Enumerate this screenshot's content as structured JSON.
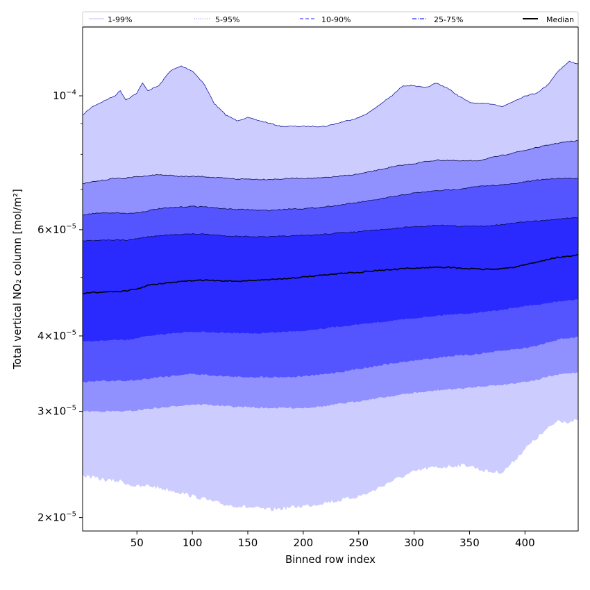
{
  "chart_data": {
    "type": "area",
    "xlabel": "Binned row index",
    "ylabel": "Total vertical NO₂ column [mol/m²]",
    "yscale": "log",
    "xlim": [
      1,
      448
    ],
    "ylim": [
      1.9e-05,
      0.00013
    ],
    "grid": false,
    "legend_position": "top",
    "x_ticks": [
      {
        "value": 50,
        "label": "50"
      },
      {
        "value": 100,
        "label": "100"
      },
      {
        "value": 150,
        "label": "150"
      },
      {
        "value": 200,
        "label": "200"
      },
      {
        "value": 250,
        "label": "250"
      },
      {
        "value": 300,
        "label": "300"
      },
      {
        "value": 350,
        "label": "350"
      },
      {
        "value": 400,
        "label": "400"
      }
    ],
    "y_ticks": [
      {
        "value": 2e-05,
        "base": "2",
        "exp": "−5"
      },
      {
        "value": 3e-05,
        "base": "3",
        "exp": "−5"
      },
      {
        "value": 4e-05,
        "base": "4",
        "exp": "−5"
      },
      {
        "value": 6e-05,
        "base": "6",
        "exp": "−5"
      },
      {
        "value": 0.0001,
        "base": "10",
        "exp": "−4"
      }
    ],
    "y_minor_ticks": [
      5e-05,
      7e-05,
      8e-05,
      9e-05
    ],
    "x": [
      1,
      10,
      20,
      30,
      35,
      40,
      50,
      55,
      60,
      70,
      80,
      90,
      100,
      110,
      120,
      130,
      140,
      150,
      160,
      170,
      180,
      190,
      200,
      210,
      220,
      230,
      240,
      250,
      260,
      270,
      280,
      290,
      300,
      310,
      320,
      330,
      340,
      350,
      360,
      370,
      380,
      390,
      400,
      410,
      420,
      430,
      440,
      448
    ],
    "bands": [
      {
        "name": "1-99%",
        "color": "#ccccff",
        "lower": [
          2.35e-05,
          2.33e-05,
          2.31e-05,
          2.3e-05,
          2.3e-05,
          2.28e-05,
          2.25e-05,
          2.25e-05,
          2.26e-05,
          2.24e-05,
          2.22e-05,
          2.2e-05,
          2.17e-05,
          2.15e-05,
          2.12e-05,
          2.1e-05,
          2.09e-05,
          2.08e-05,
          2.07e-05,
          2.06e-05,
          2.07e-05,
          2.08e-05,
          2.09e-05,
          2.1e-05,
          2.12e-05,
          2.13e-05,
          2.15e-05,
          2.17e-05,
          2.2e-05,
          2.25e-05,
          2.3e-05,
          2.34e-05,
          2.38e-05,
          2.41e-05,
          2.42e-05,
          2.43e-05,
          2.44e-05,
          2.44e-05,
          2.4e-05,
          2.38e-05,
          2.38e-05,
          2.48e-05,
          2.6e-05,
          2.7e-05,
          2.8e-05,
          2.9e-05,
          2.88e-05,
          2.9e-05
        ],
        "upper": [
          9.3e-05,
          9.6e-05,
          9.8e-05,
          0.0001,
          0.000102,
          9.85e-05,
          0.000101,
          0.000105,
          0.000102,
          0.000104,
          0.00011,
          0.000112,
          0.00011,
          0.000105,
          9.7e-05,
          9.3e-05,
          9.1e-05,
          9.2e-05,
          9.1e-05,
          9e-05,
          8.9e-05,
          8.9e-05,
          8.9e-05,
          8.9e-05,
          8.9e-05,
          9e-05,
          9.1e-05,
          9.2e-05,
          9.4e-05,
          9.7e-05,
          0.0001,
          0.000104,
          0.000104,
          0.000103,
          0.000105,
          0.000103,
          0.0001,
          9.75e-05,
          9.7e-05,
          9.7e-05,
          9.6e-05,
          9.8e-05,
          0.0001,
          0.000101,
          0.000104,
          0.00011,
          0.000114,
          0.000113
        ]
      },
      {
        "name": "5-95%",
        "color": "#9090ff",
        "lower": [
          3e-05,
          3e-05,
          3e-05,
          3e-05,
          3e-05,
          3e-05,
          3.01e-05,
          3.02e-05,
          3.03e-05,
          3.04e-05,
          3.05e-05,
          3.07e-05,
          3.08e-05,
          3.08e-05,
          3.07e-05,
          3.06e-05,
          3.05e-05,
          3.05e-05,
          3.04e-05,
          3.04e-05,
          3.04e-05,
          3.04e-05,
          3.04e-05,
          3.05e-05,
          3.06e-05,
          3.08e-05,
          3.1e-05,
          3.12e-05,
          3.14e-05,
          3.16e-05,
          3.18e-05,
          3.2e-05,
          3.22e-05,
          3.23e-05,
          3.25e-05,
          3.26e-05,
          3.27e-05,
          3.28e-05,
          3.3e-05,
          3.31e-05,
          3.32e-05,
          3.34e-05,
          3.36e-05,
          3.38e-05,
          3.42e-05,
          3.45e-05,
          3.47e-05,
          3.48e-05
        ],
        "upper": [
          7.15e-05,
          7.2e-05,
          7.25e-05,
          7.3e-05,
          7.3e-05,
          7.3e-05,
          7.35e-05,
          7.35e-05,
          7.38e-05,
          7.4e-05,
          7.38e-05,
          7.35e-05,
          7.35e-05,
          7.35e-05,
          7.32e-05,
          7.3e-05,
          7.28e-05,
          7.28e-05,
          7.27e-05,
          7.27e-05,
          7.28e-05,
          7.3e-05,
          7.3e-05,
          7.3e-05,
          7.32e-05,
          7.35e-05,
          7.38e-05,
          7.42e-05,
          7.48e-05,
          7.55e-05,
          7.62e-05,
          7.68e-05,
          7.72e-05,
          7.78e-05,
          7.82e-05,
          7.82e-05,
          7.8e-05,
          7.8e-05,
          7.82e-05,
          7.9e-05,
          7.97e-05,
          8.05e-05,
          8.12e-05,
          8.2e-05,
          8.28e-05,
          8.35e-05,
          8.4e-05,
          8.42e-05
        ]
      },
      {
        "name": "10-90%",
        "color": "#5555ff",
        "lower": [
          3.35e-05,
          3.36e-05,
          3.37e-05,
          3.37e-05,
          3.37e-05,
          3.37e-05,
          3.38e-05,
          3.39e-05,
          3.4e-05,
          3.42e-05,
          3.43e-05,
          3.45e-05,
          3.46e-05,
          3.45e-05,
          3.44e-05,
          3.43e-05,
          3.42e-05,
          3.42e-05,
          3.42e-05,
          3.42e-05,
          3.42e-05,
          3.42e-05,
          3.43e-05,
          3.44e-05,
          3.46e-05,
          3.48e-05,
          3.5e-05,
          3.53e-05,
          3.55e-05,
          3.58e-05,
          3.6e-05,
          3.62e-05,
          3.64e-05,
          3.66e-05,
          3.68e-05,
          3.7e-05,
          3.71e-05,
          3.72e-05,
          3.74e-05,
          3.76e-05,
          3.78e-05,
          3.8e-05,
          3.82e-05,
          3.85e-05,
          3.9e-05,
          3.95e-05,
          3.97e-05,
          3.98e-05
        ],
        "upper": [
          6.35e-05,
          6.38e-05,
          6.4e-05,
          6.4e-05,
          6.4e-05,
          6.38e-05,
          6.4e-05,
          6.42e-05,
          6.45e-05,
          6.5e-05,
          6.52e-05,
          6.54e-05,
          6.56e-05,
          6.55e-05,
          6.52e-05,
          6.5e-05,
          6.48e-05,
          6.48e-05,
          6.46e-05,
          6.46e-05,
          6.48e-05,
          6.5e-05,
          6.5e-05,
          6.52e-05,
          6.55e-05,
          6.58e-05,
          6.62e-05,
          6.66e-05,
          6.7e-05,
          6.75e-05,
          6.8e-05,
          6.85e-05,
          6.9e-05,
          6.93e-05,
          6.96e-05,
          6.98e-05,
          7e-05,
          7.05e-05,
          7.08e-05,
          7.1e-05,
          7.12e-05,
          7.15e-05,
          7.2e-05,
          7.25e-05,
          7.28e-05,
          7.3e-05,
          7.3e-05,
          7.3e-05
        ]
      },
      {
        "name": "25-75%",
        "color": "#2a2aff",
        "lower": [
          3.92e-05,
          3.92e-05,
          3.93e-05,
          3.94e-05,
          3.94e-05,
          3.94e-05,
          3.96e-05,
          3.98e-05,
          4e-05,
          4.02e-05,
          4.04e-05,
          4.05e-05,
          4.06e-05,
          4.06e-05,
          4.05e-05,
          4.05e-05,
          4.04e-05,
          4.04e-05,
          4.04e-05,
          4.05e-05,
          4.06e-05,
          4.07e-05,
          4.08e-05,
          4.1e-05,
          4.12e-05,
          4.14e-05,
          4.16e-05,
          4.18e-05,
          4.2e-05,
          4.22e-05,
          4.24e-05,
          4.26e-05,
          4.28e-05,
          4.3e-05,
          4.32e-05,
          4.34e-05,
          4.35e-05,
          4.36e-05,
          4.38e-05,
          4.4e-05,
          4.42e-05,
          4.45e-05,
          4.48e-05,
          4.5e-05,
          4.53e-05,
          4.56e-05,
          4.58e-05,
          4.6e-05
        ],
        "upper": [
          5.75e-05,
          5.76e-05,
          5.77e-05,
          5.77e-05,
          5.77e-05,
          5.76e-05,
          5.8e-05,
          5.82e-05,
          5.84e-05,
          5.86e-05,
          5.88e-05,
          5.9e-05,
          5.9e-05,
          5.9e-05,
          5.88e-05,
          5.86e-05,
          5.85e-05,
          5.85e-05,
          5.84e-05,
          5.84e-05,
          5.85e-05,
          5.86e-05,
          5.87e-05,
          5.88e-05,
          5.9e-05,
          5.92e-05,
          5.94e-05,
          5.95e-05,
          5.98e-05,
          6e-05,
          6.02e-05,
          6.05e-05,
          6.07e-05,
          6.08e-05,
          6.1e-05,
          6.1e-05,
          6.08e-05,
          6.08e-05,
          6.08e-05,
          6.1e-05,
          6.12e-05,
          6.15e-05,
          6.18e-05,
          6.2e-05,
          6.22e-05,
          6.25e-05,
          6.27e-05,
          6.27e-05
        ]
      }
    ],
    "median": {
      "name": "Median",
      "color": "#000000",
      "values": [
        4.7e-05,
        4.72e-05,
        4.73e-05,
        4.74e-05,
        4.74e-05,
        4.75e-05,
        4.78e-05,
        4.82e-05,
        4.85e-05,
        4.88e-05,
        4.9e-05,
        4.92e-05,
        4.94e-05,
        4.95e-05,
        4.94e-05,
        4.93e-05,
        4.93e-05,
        4.94e-05,
        4.95e-05,
        4.96e-05,
        4.97e-05,
        4.99e-05,
        5.01e-05,
        5.03e-05,
        5.05e-05,
        5.07e-05,
        5.09e-05,
        5.1e-05,
        5.12e-05,
        5.14e-05,
        5.15e-05,
        5.17e-05,
        5.18e-05,
        5.19e-05,
        5.2e-05,
        5.2e-05,
        5.18e-05,
        5.17e-05,
        5.16e-05,
        5.16e-05,
        5.17e-05,
        5.2e-05,
        5.25e-05,
        5.3e-05,
        5.35e-05,
        5.4e-05,
        5.42e-05,
        5.45e-05
      ]
    },
    "legend": [
      {
        "label": "1-99%",
        "color": "#ccccff",
        "dash": "solid"
      },
      {
        "label": "5-95%",
        "color": "#9090ff",
        "dash": "dotted"
      },
      {
        "label": "10-90%",
        "color": "#5555ff",
        "dash": "dashed"
      },
      {
        "label": "25-75%",
        "color": "#2a2aff",
        "dash": "dashdot"
      },
      {
        "label": "Median",
        "color": "#000000",
        "dash": "solid"
      }
    ]
  }
}
